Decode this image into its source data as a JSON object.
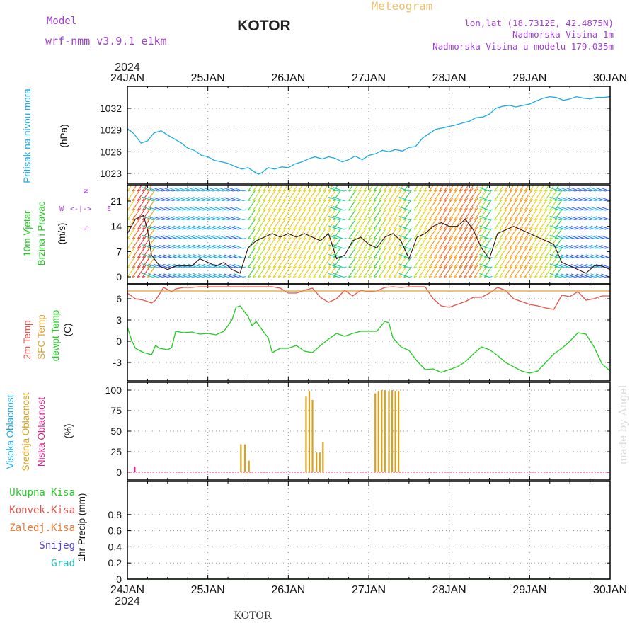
{
  "header": {
    "model_label": "Model",
    "model_name": "wrf-nmm_v3.9.1 e1km",
    "station": "KOTOR",
    "product": "Meteogram",
    "lonlat": "lon,lat (18.7312E, 42.4875N)",
    "altitude": "Nadmorska Visina 1m",
    "model_altitude": "Nadmorska Visina u modelu 179.035m",
    "year": "2024",
    "footer_station": "KOTOR",
    "credit": "made by Angel"
  },
  "colors": {
    "pressure": "#1aaae6",
    "temp2m": "#e8524a",
    "sfc": "#e0a030",
    "dewpt": "#22cc22",
    "high_cloud": "#1aaae6",
    "mid_cloud": "#dba11a",
    "low_cloud": "#e0208a",
    "purple": "#a040d0"
  },
  "x_axis": {
    "ticks": [
      "24JAN",
      "25JAN",
      "26JAN",
      "27JAN",
      "28JAN",
      "29JAN",
      "30JAN"
    ]
  },
  "wind_compass": {
    "north": "N",
    "south": "S",
    "west": "W",
    "east": "E"
  },
  "chart_data": [
    {
      "type": "line",
      "panel": "pressure",
      "labels": [
        "Pritisak na nivou mora",
        "(hPa)"
      ],
      "yticks": [
        "1032",
        "1029",
        "1026",
        "1023"
      ],
      "ylim": [
        1021.5,
        1034.5
      ],
      "series": [
        {
          "x": [
            0,
            0.08,
            0.17,
            0.25,
            0.33,
            0.42,
            0.5,
            0.58,
            0.67,
            0.75,
            0.83,
            0.92,
            1.0,
            1.08,
            1.17,
            1.25,
            1.33,
            1.42,
            1.5,
            1.58,
            1.63,
            1.67,
            1.75,
            1.83,
            1.92,
            2.0,
            2.08,
            2.17,
            2.25,
            2.33,
            2.42,
            2.5,
            2.58,
            2.67,
            2.75,
            2.83,
            2.92,
            3.0,
            3.08,
            3.17,
            3.25,
            3.33,
            3.42,
            3.5,
            3.58,
            3.67,
            3.75,
            3.83,
            3.92,
            4.0,
            4.08,
            4.17,
            4.25,
            4.33,
            4.42,
            4.5,
            4.58,
            4.67,
            4.75,
            4.83,
            4.92,
            5.0,
            5.08,
            5.17,
            5.25,
            5.33,
            5.42,
            5.5,
            5.58,
            5.67,
            5.75,
            5.83,
            5.92,
            6.0
          ],
          "y": [
            1029.2,
            1028.5,
            1027.2,
            1027.5,
            1028.6,
            1028.9,
            1028.3,
            1027.8,
            1027.2,
            1026.5,
            1026.2,
            1025.5,
            1025.3,
            1024.8,
            1024.6,
            1024.4,
            1024.0,
            1023.6,
            1023.8,
            1023.2,
            1022.9,
            1023.1,
            1023.8,
            1023.6,
            1023.9,
            1023.8,
            1024.3,
            1024.6,
            1025.0,
            1025.3,
            1025.0,
            1025.3,
            1025.1,
            1024.6,
            1024.9,
            1025.4,
            1024.9,
            1025.5,
            1025.7,
            1026.2,
            1026.0,
            1026.3,
            1026.1,
            1026.6,
            1026.7,
            1027.9,
            1028.5,
            1029.1,
            1029.3,
            1029.5,
            1029.7,
            1030.0,
            1030.2,
            1030.7,
            1030.8,
            1031.2,
            1032.0,
            1032.3,
            1032.4,
            1032.2,
            1032.4,
            1032.6,
            1033.0,
            1033.4,
            1033.6,
            1033.5,
            1033.1,
            1033.3,
            1033.6,
            1033.4,
            1033.3,
            1033.5,
            1033.5,
            1033.6
          ]
        }
      ]
    },
    {
      "type": "line",
      "panel": "wind",
      "labels": [
        "10m Vjetar",
        "Brzina i Pravac",
        "(m/s)"
      ],
      "yticks": [
        "21",
        "14",
        "7",
        "0"
      ],
      "ylim": [
        -1.5,
        25.5
      ],
      "series": [
        {
          "x": [
            0,
            0.1,
            0.2,
            0.25,
            0.3,
            0.4,
            0.5,
            0.6,
            0.7,
            0.8,
            0.9,
            1.0,
            1.1,
            1.2,
            1.3,
            1.4,
            1.5,
            1.6,
            1.7,
            1.8,
            1.9,
            2.0,
            2.1,
            2.2,
            2.3,
            2.4,
            2.5,
            2.6,
            2.7,
            2.8,
            2.9,
            3.0,
            3.1,
            3.2,
            3.3,
            3.4,
            3.5,
            3.6,
            3.7,
            3.8,
            3.9,
            4.0,
            4.1,
            4.2,
            4.3,
            4.4,
            4.5,
            4.6,
            4.7,
            4.8,
            4.9,
            5.0,
            5.1,
            5.2,
            5.3,
            5.4,
            5.5,
            5.6,
            5.7,
            5.8,
            5.9,
            6.0
          ],
          "y": [
            12,
            16,
            17,
            13,
            6,
            3,
            2,
            3,
            3,
            3,
            5,
            4,
            3,
            4,
            2,
            1,
            8,
            10,
            11,
            12,
            11,
            12,
            11,
            12,
            11,
            10,
            12,
            5,
            6,
            10,
            11,
            9,
            8,
            11,
            12,
            10,
            5,
            11,
            12,
            14,
            15,
            14,
            14,
            16,
            13,
            8,
            5,
            12,
            13,
            14,
            13,
            12,
            11,
            10,
            9,
            4,
            3,
            2,
            1,
            3,
            3,
            2
          ]
        }
      ]
    },
    {
      "type": "line",
      "panel": "temperature",
      "labels": [
        "2m Temp",
        "SFC Temp",
        "dewpt Temp",
        "(C)"
      ],
      "yticks": [
        "6",
        "3",
        "0",
        "-3"
      ],
      "ylim": [
        -5.2,
        7.7
      ],
      "series": [
        {
          "name": "2m Temp",
          "x": [
            0.0,
            0.1,
            0.2,
            0.3,
            0.35,
            0.45,
            0.55,
            0.6,
            0.7,
            0.8,
            0.9,
            1.0,
            1.1,
            1.2,
            1.3,
            1.4,
            1.5,
            1.6,
            1.7,
            1.8,
            1.9,
            2.0,
            2.1,
            2.2,
            2.3,
            2.4,
            2.5,
            2.6,
            2.7,
            2.8,
            2.9,
            3.0,
            3.1,
            3.2,
            3.3,
            3.4,
            3.5,
            3.6,
            3.7,
            3.8,
            3.9,
            4.0,
            4.1,
            4.2,
            4.3,
            4.4,
            4.5,
            4.6,
            4.7,
            4.8,
            4.9,
            5.0,
            5.1,
            5.2,
            5.3,
            5.4,
            5.5,
            5.6,
            5.7,
            5.8,
            5.9,
            6.0
          ],
          "y": [
            6.8,
            6.0,
            5.8,
            5.4,
            5.8,
            7.6,
            7.0,
            7.4,
            7.6,
            7.6,
            7.7,
            7.7,
            7.7,
            7.7,
            7.7,
            7.7,
            7.7,
            7.7,
            7.7,
            7.7,
            7.5,
            6.8,
            6.8,
            7.2,
            7.5,
            6.2,
            5.5,
            6.0,
            7.2,
            6.4,
            7.2,
            7.0,
            7.1,
            7.6,
            7.7,
            7.6,
            7.7,
            7.7,
            7.7,
            6.0,
            5.0,
            4.8,
            5.2,
            5.6,
            6.2,
            6.2,
            6.8,
            7.6,
            7.2,
            6.0,
            5.6,
            5.2,
            5.0,
            4.7,
            4.5,
            6.5,
            6.3,
            7.0,
            5.8,
            6.0,
            6.4,
            6.4
          ]
        },
        {
          "name": "SFC Temp",
          "x": [
            0,
            6
          ],
          "y": [
            7.1,
            7.1
          ]
        },
        {
          "name": "dewpt Temp",
          "x": [
            0.0,
            0.05,
            0.1,
            0.2,
            0.3,
            0.35,
            0.4,
            0.5,
            0.55,
            0.6,
            0.7,
            0.8,
            0.9,
            1.0,
            1.1,
            1.2,
            1.3,
            1.35,
            1.4,
            1.5,
            1.55,
            1.6,
            1.7,
            1.75,
            1.8,
            1.9,
            2.0,
            2.1,
            2.2,
            2.3,
            2.4,
            2.5,
            2.6,
            2.7,
            2.8,
            2.9,
            3.0,
            3.1,
            3.2,
            3.25,
            3.3,
            3.4,
            3.5,
            3.6,
            3.7,
            3.8,
            3.9,
            4.0,
            4.1,
            4.2,
            4.3,
            4.4,
            4.5,
            4.6,
            4.7,
            4.8,
            4.9,
            5.0,
            5.1,
            5.2,
            5.3,
            5.4,
            5.5,
            5.6,
            5.7,
            5.8,
            5.9,
            6.0
          ],
          "y": [
            2.0,
            0.2,
            -1.0,
            -1.6,
            -1.9,
            -0.6,
            -1.0,
            -1.2,
            -0.9,
            1.4,
            1.2,
            1.3,
            1.0,
            1.1,
            0.9,
            1.4,
            3.0,
            4.8,
            5.0,
            3.5,
            2.2,
            2.8,
            1.2,
            0.5,
            -1.6,
            -1.0,
            -1.0,
            -0.6,
            -1.4,
            -1.6,
            -0.6,
            0.3,
            1.1,
            0.7,
            1.1,
            1.4,
            1.4,
            1.4,
            2.8,
            2.6,
            0.5,
            -0.8,
            -1.3,
            -2.8,
            -4.0,
            -3.9,
            -4.4,
            -4.0,
            -3.6,
            -2.9,
            -1.8,
            -0.8,
            -1.2,
            -2.0,
            -3.0,
            -3.6,
            -4.2,
            -4.5,
            -4.2,
            -3.0,
            -1.8,
            -1.0,
            0.0,
            1.2,
            1.0,
            -0.8,
            -3.2,
            -4.2
          ]
        }
      ]
    },
    {
      "type": "bar",
      "panel": "cloud",
      "labels": [
        "Visoka Oblacnost",
        "Srednja Oblacnost",
        "Niska Oblacnost",
        "(%)"
      ],
      "yticks": [
        "100",
        "75",
        "50",
        "25",
        "0"
      ],
      "ylim": [
        -3,
        104
      ],
      "series": [
        {
          "name": "Srednja Oblacnost",
          "x": [
            1.41,
            1.46,
            1.51,
            2.22,
            2.26,
            2.3,
            2.35,
            2.39,
            2.43,
            3.08,
            3.12,
            3.16,
            3.2,
            3.25,
            3.29,
            3.33,
            3.37
          ],
          "y": [
            34,
            34,
            14,
            92,
            99,
            88,
            24,
            24,
            37,
            96,
            99,
            100,
            100,
            99,
            100,
            99,
            99
          ]
        },
        {
          "name": "Niska Oblacnost",
          "x": [
            0.09
          ],
          "y": [
            7
          ]
        }
      ]
    },
    {
      "type": "line",
      "panel": "precip",
      "labels": [
        "Ukupna Kisa",
        "Konvek.Kisa",
        "Zaledj.Kisa",
        "Snijeg",
        "Grad",
        "1hr Precip (mm)"
      ],
      "yticks": [
        "0.8",
        "0.6",
        "0.4",
        "0.2",
        "0"
      ],
      "ylim": [
        0,
        1.0
      ],
      "series": [
        {
          "name": "Ukupna Kisa",
          "x": [
            0,
            6
          ],
          "y": [
            0,
            0
          ]
        }
      ]
    }
  ]
}
